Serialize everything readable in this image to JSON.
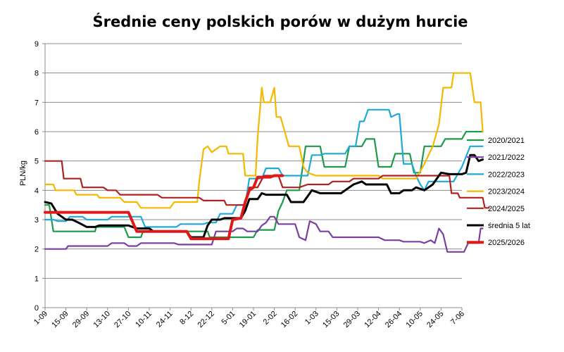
{
  "chart_data": {
    "type": "line",
    "title": "Średnie ceny polskich porów w dużym hurcie",
    "xlabel": "",
    "ylabel": "PLN/kg",
    "ylim": [
      0,
      9
    ],
    "yticks": [
      0,
      1,
      2,
      3,
      4,
      5,
      6,
      7,
      8,
      9
    ],
    "grid": "horizontal",
    "legend_position": "right",
    "categories": [
      "1-09",
      "15-09",
      "29-09",
      "13-10",
      "27-10",
      "10-11",
      "24-11",
      "8-12",
      "22-12",
      "5-01",
      "19-01",
      "2-02",
      "16-02",
      "1-03",
      "15-03",
      "29-03",
      "12-04",
      "26-04",
      "10-05",
      "24-05",
      "7-06"
    ],
    "series": [
      {
        "name": "2020/2021",
        "color": "#1e9a4a",
        "width": 2.2,
        "points": [
          [
            0,
            3.5
          ],
          [
            0.2,
            3.5
          ],
          [
            0.4,
            2.6
          ],
          [
            2.4,
            2.6
          ],
          [
            2.45,
            2.75
          ],
          [
            3.8,
            2.75
          ],
          [
            4,
            2.4
          ],
          [
            4.6,
            2.4
          ],
          [
            4.7,
            2.6
          ],
          [
            7.8,
            2.6
          ],
          [
            7.9,
            2.4
          ],
          [
            10,
            2.4
          ],
          [
            10.2,
            2.65
          ],
          [
            11,
            2.65
          ],
          [
            11.2,
            3.3
          ],
          [
            11.4,
            3.6
          ],
          [
            11.6,
            4
          ],
          [
            12.2,
            4
          ],
          [
            12.5,
            5.5
          ],
          [
            13.2,
            5.5
          ],
          [
            13.4,
            4.8
          ],
          [
            14.4,
            4.8
          ],
          [
            14.6,
            5.5
          ],
          [
            15.2,
            5.5
          ],
          [
            15.4,
            5.75
          ],
          [
            15.8,
            5.75
          ],
          [
            16,
            4.8
          ],
          [
            16.6,
            4.8
          ],
          [
            16.8,
            5.25
          ],
          [
            17.5,
            5.25
          ],
          [
            17.7,
            4.6
          ],
          [
            18,
            4.6
          ],
          [
            18.2,
            5.5
          ],
          [
            19,
            5.5
          ],
          [
            19.2,
            5.75
          ],
          [
            20,
            5.75
          ],
          [
            20.2,
            6
          ],
          [
            21,
            6
          ]
        ]
      },
      {
        "name": "2021/2022",
        "color": "#7a3fa0",
        "width": 2.2,
        "points": [
          [
            0,
            2
          ],
          [
            1,
            2
          ],
          [
            1.1,
            2.1
          ],
          [
            3,
            2.1
          ],
          [
            3.2,
            2.2
          ],
          [
            3.8,
            2.2
          ],
          [
            4,
            2.1
          ],
          [
            4.4,
            2.1
          ],
          [
            4.6,
            2.2
          ],
          [
            6.2,
            2.2
          ],
          [
            6.4,
            2.15
          ],
          [
            8,
            2.15
          ],
          [
            8.2,
            2.6
          ],
          [
            9,
            2.6
          ],
          [
            9.2,
            2.7
          ],
          [
            9.5,
            2.7
          ],
          [
            9.7,
            2.6
          ],
          [
            10.2,
            2.6
          ],
          [
            10.4,
            2.8
          ],
          [
            10.6,
            2.9
          ],
          [
            10.8,
            3.1
          ],
          [
            11,
            3.1
          ],
          [
            11.2,
            2.85
          ],
          [
            12,
            2.85
          ],
          [
            12.2,
            2.4
          ],
          [
            12.5,
            2.3
          ],
          [
            12.7,
            2.95
          ],
          [
            13,
            2.85
          ],
          [
            13.2,
            2.6
          ],
          [
            13.6,
            2.6
          ],
          [
            13.8,
            2.4
          ],
          [
            14.4,
            2.4
          ],
          [
            14.6,
            2.4
          ],
          [
            16,
            2.4
          ],
          [
            16.3,
            2.3
          ],
          [
            17,
            2.3
          ],
          [
            17.2,
            2.25
          ],
          [
            18,
            2.25
          ],
          [
            18.2,
            2.2
          ],
          [
            18.5,
            2.3
          ],
          [
            18.7,
            2.2
          ],
          [
            18.9,
            2.7
          ],
          [
            19.1,
            2.5
          ],
          [
            19.3,
            1.9
          ],
          [
            20.1,
            1.9
          ],
          [
            20.3,
            2.2
          ],
          [
            20.8,
            2.2
          ],
          [
            20.9,
            2.7
          ],
          [
            21,
            2.7
          ]
        ]
      },
      {
        "name": "2022/2023",
        "color": "#1eaad8",
        "width": 2.2,
        "points": [
          [
            0,
            3
          ],
          [
            0.4,
            3
          ],
          [
            0.6,
            2.95
          ],
          [
            1,
            2.95
          ],
          [
            1.2,
            3.1
          ],
          [
            1.8,
            3.1
          ],
          [
            2,
            3
          ],
          [
            3,
            3
          ],
          [
            3.2,
            3.1
          ],
          [
            4.6,
            3.1
          ],
          [
            4.8,
            2.75
          ],
          [
            6.3,
            2.75
          ],
          [
            6.5,
            2.85
          ],
          [
            7.6,
            2.85
          ],
          [
            7.8,
            2.9
          ],
          [
            8.2,
            2.9
          ],
          [
            8.4,
            3.2
          ],
          [
            9,
            3.2
          ],
          [
            9.2,
            3.5
          ],
          [
            9.6,
            3.5
          ],
          [
            9.8,
            4.4
          ],
          [
            10.4,
            4.4
          ],
          [
            10.6,
            4.75
          ],
          [
            11.2,
            4.75
          ],
          [
            11.4,
            4.5
          ],
          [
            12.6,
            4.5
          ],
          [
            12.8,
            5.2
          ],
          [
            13.2,
            5.2
          ],
          [
            13.4,
            5.25
          ],
          [
            14.4,
            5.25
          ],
          [
            14.6,
            5.5
          ],
          [
            14.9,
            5.5
          ],
          [
            15.1,
            6.35
          ],
          [
            15.3,
            6.35
          ],
          [
            15.5,
            6.75
          ],
          [
            16.5,
            6.75
          ],
          [
            16.6,
            6.5
          ],
          [
            16.9,
            6.6
          ],
          [
            17,
            6.6
          ],
          [
            17.2,
            4.9
          ],
          [
            17.6,
            4.9
          ],
          [
            17.8,
            4.5
          ],
          [
            18,
            4.2
          ],
          [
            18.2,
            4
          ],
          [
            18.4,
            4.3
          ],
          [
            19.6,
            4.3
          ],
          [
            20,
            4.8
          ],
          [
            20.4,
            5.5
          ],
          [
            21,
            5.5
          ]
        ]
      },
      {
        "name": "2023/2024",
        "color": "#f5b800",
        "width": 2.2,
        "points": [
          [
            0,
            4.2
          ],
          [
            0.4,
            4.2
          ],
          [
            0.5,
            4
          ],
          [
            1.4,
            4
          ],
          [
            1.5,
            3.85
          ],
          [
            2.5,
            3.85
          ],
          [
            2.6,
            3.75
          ],
          [
            3.6,
            3.75
          ],
          [
            3.8,
            3.6
          ],
          [
            4.4,
            3.6
          ],
          [
            4.6,
            3.4
          ],
          [
            6,
            3.4
          ],
          [
            6.2,
            3.6
          ],
          [
            7.3,
            3.6
          ],
          [
            7.4,
            4.3
          ],
          [
            7.6,
            5.4
          ],
          [
            7.8,
            5.5
          ],
          [
            8,
            5.3
          ],
          [
            8.4,
            5.5
          ],
          [
            8.7,
            5.5
          ],
          [
            8.8,
            5.25
          ],
          [
            9.5,
            5.25
          ],
          [
            9.6,
            4.5
          ],
          [
            10.1,
            4.5
          ],
          [
            10.2,
            5.8
          ],
          [
            10.4,
            7.5
          ],
          [
            10.5,
            7
          ],
          [
            10.8,
            7
          ],
          [
            11,
            7.5
          ],
          [
            11.1,
            6.5
          ],
          [
            11.3,
            6.5
          ],
          [
            11.5,
            6
          ],
          [
            11.7,
            5.5
          ],
          [
            12.2,
            5.5
          ],
          [
            12.4,
            4.8
          ],
          [
            12.6,
            4.6
          ],
          [
            13,
            4.5
          ],
          [
            16,
            4.5
          ],
          [
            16.2,
            4.4
          ],
          [
            17.8,
            4.4
          ],
          [
            18.2,
            4.9
          ],
          [
            18.6,
            5.5
          ],
          [
            18.9,
            6.25
          ],
          [
            19.1,
            7.5
          ],
          [
            19.5,
            7.5
          ],
          [
            19.6,
            8
          ],
          [
            20.4,
            8
          ],
          [
            20.6,
            7
          ],
          [
            20.9,
            7
          ],
          [
            21,
            6
          ]
        ]
      },
      {
        "name": "2024/2025",
        "color": "#b22020",
        "width": 2.2,
        "points": [
          [
            0,
            5
          ],
          [
            0.8,
            5
          ],
          [
            0.9,
            4.4
          ],
          [
            1.7,
            4.4
          ],
          [
            1.8,
            4.1
          ],
          [
            2.8,
            4.1
          ],
          [
            3,
            4
          ],
          [
            3.4,
            4
          ],
          [
            3.6,
            3.85
          ],
          [
            5.4,
            3.85
          ],
          [
            5.6,
            3.75
          ],
          [
            7.4,
            3.75
          ],
          [
            7.6,
            3.65
          ],
          [
            8.6,
            3.65
          ],
          [
            8.7,
            3.5
          ],
          [
            9.6,
            3.5
          ],
          [
            9.8,
            4.1
          ],
          [
            10.2,
            4.1
          ],
          [
            10.5,
            4.5
          ],
          [
            11.2,
            4.5
          ],
          [
            11.4,
            4.1
          ],
          [
            12,
            4.1
          ],
          [
            12.2,
            4.1
          ],
          [
            12.6,
            4.2
          ],
          [
            13.6,
            4.2
          ],
          [
            13.8,
            4.3
          ],
          [
            14.6,
            4.3
          ],
          [
            14.8,
            4.4
          ],
          [
            16,
            4.4
          ],
          [
            16.2,
            4.5
          ],
          [
            19.4,
            4.5
          ],
          [
            19.5,
            3.9
          ],
          [
            19.8,
            3.9
          ],
          [
            19.9,
            3.75
          ],
          [
            21,
            3.75
          ],
          [
            21.1,
            3.4
          ],
          [
            21.3,
            3.4
          ]
        ]
      },
      {
        "name": "średnia 5 lat",
        "color": "#000000",
        "width": 3,
        "points": [
          [
            0,
            3.6
          ],
          [
            0.3,
            3.55
          ],
          [
            0.6,
            3.2
          ],
          [
            0.8,
            3.1
          ],
          [
            1,
            3
          ],
          [
            1.3,
            3
          ],
          [
            1.6,
            2.9
          ],
          [
            2,
            2.75
          ],
          [
            2.4,
            2.75
          ],
          [
            2.6,
            2.8
          ],
          [
            3,
            2.8
          ],
          [
            4,
            2.8
          ],
          [
            4.4,
            2.7
          ],
          [
            5,
            2.7
          ],
          [
            5.2,
            2.6
          ],
          [
            6.8,
            2.6
          ],
          [
            7,
            2.4
          ],
          [
            7.6,
            2.4
          ],
          [
            7.8,
            2.8
          ],
          [
            8,
            3
          ],
          [
            8.4,
            3
          ],
          [
            8.6,
            3.05
          ],
          [
            9.4,
            3.05
          ],
          [
            9.6,
            3.3
          ],
          [
            9.8,
            3.7
          ],
          [
            10.2,
            3.7
          ],
          [
            10.4,
            3.9
          ],
          [
            10.6,
            3.85
          ],
          [
            11.6,
            3.85
          ],
          [
            11.8,
            3.6
          ],
          [
            12.4,
            3.6
          ],
          [
            12.6,
            3.8
          ],
          [
            12.8,
            4
          ],
          [
            13.2,
            3.9
          ],
          [
            14.2,
            3.9
          ],
          [
            14.4,
            4
          ],
          [
            14.8,
            4.2
          ],
          [
            15.2,
            4.3
          ],
          [
            15.4,
            4.2
          ],
          [
            16,
            4.2
          ],
          [
            16.4,
            4.2
          ],
          [
            16.6,
            3.9
          ],
          [
            17,
            3.9
          ],
          [
            17.2,
            4
          ],
          [
            17.6,
            4
          ],
          [
            17.8,
            4.1
          ],
          [
            18.2,
            4
          ],
          [
            18.6,
            4.2
          ],
          [
            19,
            4.6
          ],
          [
            19.4,
            4.55
          ],
          [
            20,
            4.55
          ],
          [
            20.2,
            4.6
          ],
          [
            20.4,
            5.2
          ],
          [
            20.6,
            5.2
          ],
          [
            20.8,
            5
          ],
          [
            21,
            5.05
          ]
        ]
      },
      {
        "name": "2025/2026",
        "color": "#e01818",
        "width": 4,
        "points": [
          [
            0,
            3.25
          ],
          [
            4,
            3.25
          ],
          [
            4.4,
            2.6
          ],
          [
            6.8,
            2.6
          ],
          [
            7,
            2.35
          ],
          [
            8.8,
            2.35
          ],
          [
            9,
            3
          ],
          [
            9.4,
            3.05
          ],
          [
            9.6,
            3.6
          ],
          [
            9.8,
            4
          ],
          [
            10,
            4.1
          ],
          [
            10.2,
            4.45
          ],
          [
            10.8,
            4.45
          ],
          [
            11,
            4.5
          ],
          [
            11.4,
            4.5
          ]
        ]
      }
    ]
  }
}
